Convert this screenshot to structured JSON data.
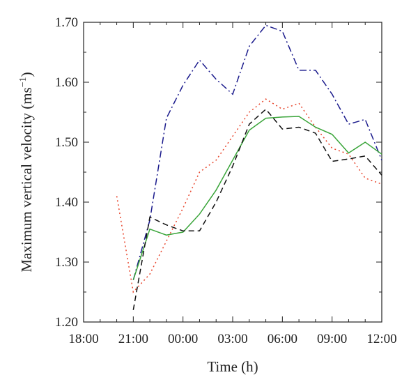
{
  "chart_data": {
    "type": "line",
    "title": "",
    "xlabel": "Time (h)",
    "ylabel": "Maximum vertical velocity (ms",
    "ylabel_unit_sup": "−1",
    "ylabel_close": ")",
    "x_unit": "hours since 18:00 of first day",
    "xlim": [
      0,
      18
    ],
    "ylim": [
      1.2,
      1.7
    ],
    "x_ticks": [
      {
        "value": 0,
        "label": "18:00"
      },
      {
        "value": 3,
        "label": "21:00"
      },
      {
        "value": 6,
        "label": "00:00"
      },
      {
        "value": 9,
        "label": "03:00"
      },
      {
        "value": 12,
        "label": "06:00"
      },
      {
        "value": 15,
        "label": "09:00"
      },
      {
        "value": 18,
        "label": "12:00"
      }
    ],
    "y_ticks": [
      {
        "value": 1.2,
        "label": "1.20"
      },
      {
        "value": 1.3,
        "label": "1.30"
      },
      {
        "value": 1.4,
        "label": "1.40"
      },
      {
        "value": 1.5,
        "label": "1.50"
      },
      {
        "value": 1.6,
        "label": "1.60"
      },
      {
        "value": 1.7,
        "label": "1.70"
      }
    ],
    "grid": false,
    "legend": "none",
    "series": [
      {
        "key": "dash-dot",
        "color": "#1a1a8c",
        "dash": "10,4,2,4",
        "x": [
          3,
          4,
          5,
          6,
          7,
          8,
          9,
          10,
          11,
          12,
          13,
          14,
          15,
          16,
          17,
          18
        ],
        "y": [
          1.27,
          1.37,
          1.54,
          1.595,
          1.637,
          1.605,
          1.58,
          1.66,
          1.695,
          1.685,
          1.62,
          1.62,
          1.58,
          1.53,
          1.538,
          1.47
        ]
      },
      {
        "key": "dotted",
        "color": "#e8452c",
        "dash": "2,4",
        "x": [
          2,
          3,
          4,
          5,
          6,
          7,
          8,
          9,
          10,
          11,
          12,
          13,
          14,
          15,
          16,
          17,
          18
        ],
        "y": [
          1.41,
          1.25,
          1.28,
          1.335,
          1.39,
          1.45,
          1.47,
          1.51,
          1.55,
          1.572,
          1.555,
          1.565,
          1.525,
          1.49,
          1.48,
          1.44,
          1.43
        ]
      },
      {
        "key": "solid",
        "color": "#3aa53a",
        "dash": "",
        "x": [
          3,
          4,
          5,
          6,
          7,
          8,
          9,
          10,
          11,
          12,
          13,
          14,
          15,
          16,
          17,
          18
        ],
        "y": [
          1.27,
          1.355,
          1.345,
          1.35,
          1.38,
          1.42,
          1.47,
          1.52,
          1.54,
          1.542,
          1.543,
          1.525,
          1.513,
          1.482,
          1.5,
          1.48
        ]
      },
      {
        "key": "dashed",
        "color": "#111111",
        "dash": "8,5",
        "x": [
          3,
          4,
          5,
          6,
          7,
          8,
          9,
          10,
          11,
          12,
          13,
          14,
          15,
          16,
          17,
          18
        ],
        "y": [
          1.22,
          1.375,
          1.362,
          1.352,
          1.352,
          1.4,
          1.46,
          1.53,
          1.555,
          1.522,
          1.525,
          1.515,
          1.468,
          1.472,
          1.477,
          1.445
        ]
      }
    ]
  }
}
